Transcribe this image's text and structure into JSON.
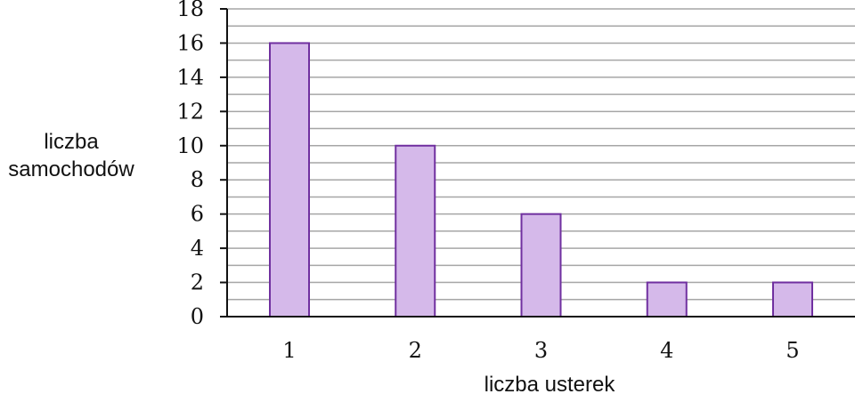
{
  "chart_data": {
    "type": "bar",
    "title": "",
    "xlabel": "liczba usterek",
    "ylabel_lines": [
      "liczba",
      "samochodów"
    ],
    "categories": [
      "1",
      "2",
      "3",
      "4",
      "5"
    ],
    "values": [
      16,
      10,
      6,
      2,
      2
    ],
    "ylim": [
      0,
      18
    ],
    "yticks": [
      "0",
      "2",
      "4",
      "6",
      "8",
      "10",
      "12",
      "14",
      "16",
      "18"
    ],
    "grid_step": 1,
    "grid": true,
    "legend": "none",
    "colors": {
      "bar_fill": "#d5b9ea",
      "bar_stroke": "#7030a0",
      "grid": "#a6a6a6",
      "axis": "#111111"
    }
  }
}
